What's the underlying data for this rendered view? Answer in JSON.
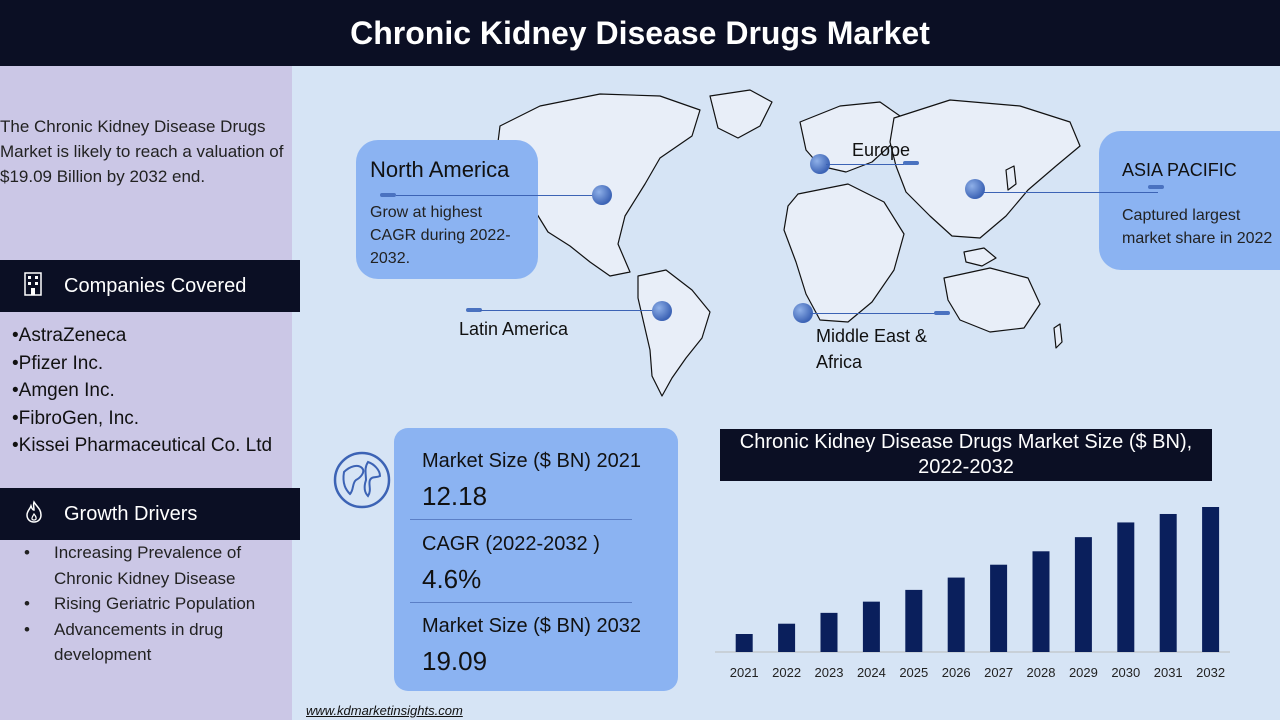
{
  "header": {
    "title": "Chronic Kidney Disease Drugs Market"
  },
  "intro": {
    "text": "The Chronic Kidney Disease Drugs Market is likely to reach a valuation of $19.09 Billion by 2032 end."
  },
  "companies": {
    "title": "Companies Covered",
    "items": [
      "•AstraZeneca",
      "•Pfizer Inc.",
      "•Amgen Inc.",
      "•FibroGen, Inc.",
      "•Kissei Pharmaceutical Co. Ltd"
    ]
  },
  "drivers": {
    "title": "Growth Drivers",
    "items": [
      "Increasing Prevalence of Chronic Kidney Disease",
      "Rising Geriatric Population",
      "Advancements in drug development"
    ]
  },
  "regions": {
    "north_america": {
      "title": "North America",
      "desc": "Grow at highest CAGR during 2022-2032."
    },
    "europe": {
      "label": "Europe"
    },
    "asia_pacific": {
      "title": "ASIA PACIFIC",
      "desc": "Captured largest market share in 2022"
    },
    "latin_america": {
      "label": "Latin America"
    },
    "mea": {
      "label": "Middle East & Africa"
    }
  },
  "stats": {
    "size_2021_label": "Market Size ($ BN) 2021",
    "size_2021_value": "12.18",
    "cagr_label": "CAGR (2022-2032 )",
    "cagr_value": "4.6%",
    "size_2032_label": "Market Size ($ BN) 2032",
    "size_2032_value": "19.09"
  },
  "chart_data": {
    "type": "bar",
    "title": "Chronic Kidney Disease Drugs Market Size ($ BN), 2022-2032",
    "categories": [
      "2021",
      "2022",
      "2023",
      "2024",
      "2025",
      "2026",
      "2027",
      "2028",
      "2029",
      "2030",
      "2031",
      "2032"
    ],
    "values": [
      12.18,
      12.74,
      13.33,
      13.94,
      14.58,
      15.25,
      15.95,
      16.68,
      17.45,
      18.25,
      18.71,
      19.09
    ],
    "bar_color": "#0a1f5c",
    "grid": false
  },
  "footer": {
    "website": "www.kdmarketinsights.com"
  },
  "colors": {
    "header_bg": "#0b0f24",
    "accent_box": "#8bb3f2",
    "left_panel": "#cbc7e6",
    "background": "#d6e4f5"
  }
}
